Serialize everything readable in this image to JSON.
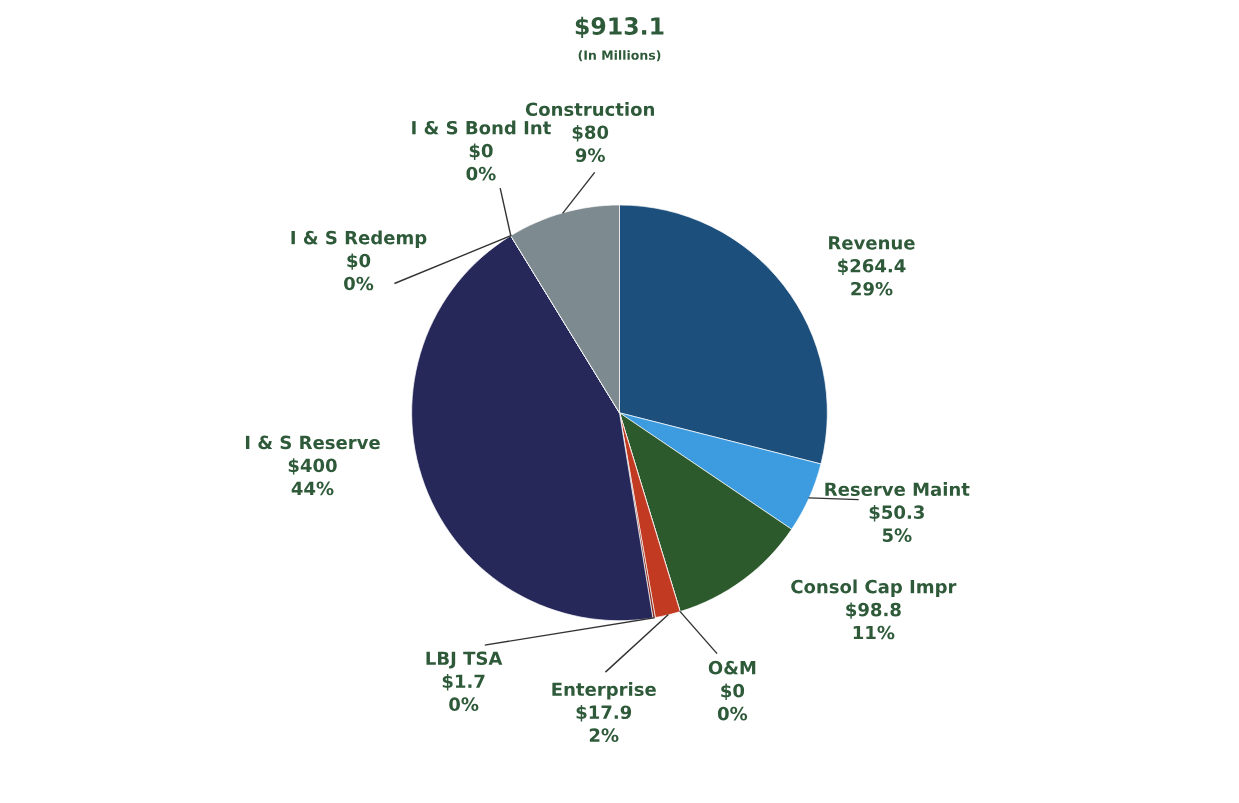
{
  "chart_data": {
    "type": "pie",
    "title": "$913.1",
    "subtitle": "(In Millions)",
    "categories": [
      "Revenue",
      "Reserve Maint",
      "Consol Cap Impr",
      "O&M",
      "Enterprise",
      "LBJ TSA",
      "I & S Reserve",
      "I & S Redemp",
      "I & S Bond Int",
      "Construction"
    ],
    "values": [
      264.4,
      50.3,
      98.8,
      0,
      17.9,
      1.7,
      400,
      0,
      0,
      80
    ],
    "value_labels": [
      "$264.4\n29%",
      "$50.3\n5%",
      "$98.8\n11%",
      "$0\n0%",
      "$17.9\n2%",
      "$1.7\n0%",
      "$400\n44%",
      "$0\n0%",
      "$0\n0%",
      "$80\n9%"
    ],
    "colors": [
      "#1d4f7c",
      "#3d9be0",
      "#2c5a2c",
      "#6b3b2b",
      "#c23a22",
      "#8b2a1a",
      "#26285a",
      "#3a3a6a",
      "#4a4a7a",
      "#7d8a90"
    ]
  }
}
